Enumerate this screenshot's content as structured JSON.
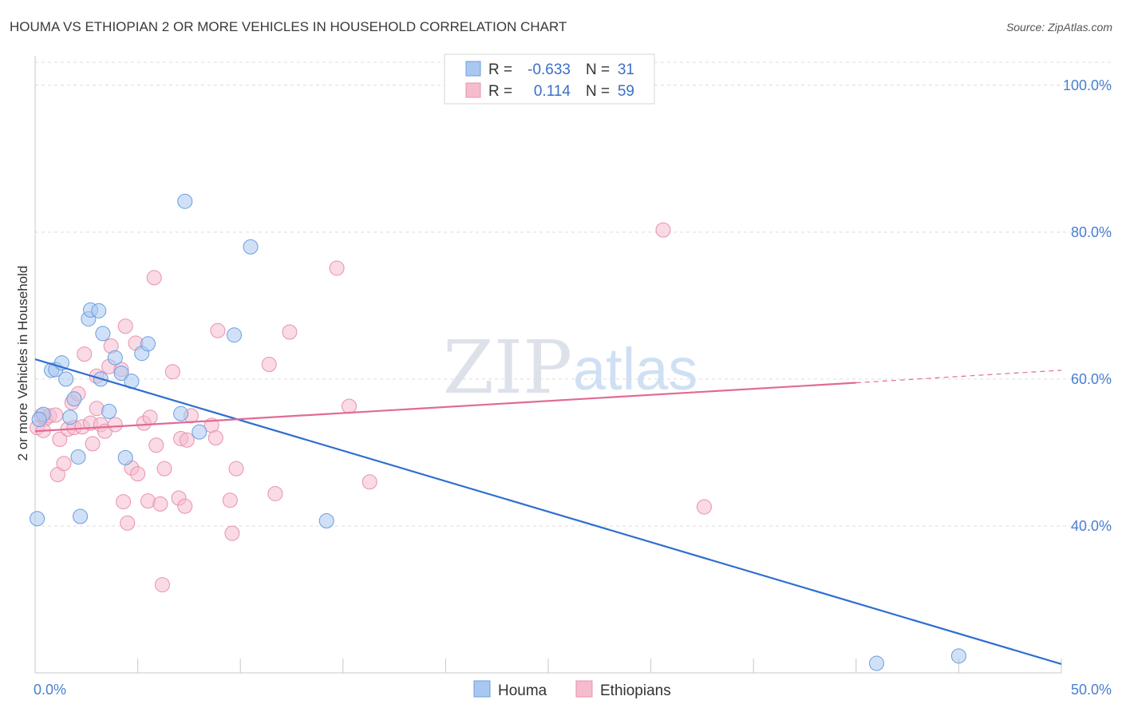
{
  "header": {
    "title": "HOUMA VS ETHIOPIAN 2 OR MORE VEHICLES IN HOUSEHOLD CORRELATION CHART",
    "source": "Source: ZipAtlas.com"
  },
  "watermark": {
    "zip": "ZIP",
    "atlas": "atlas"
  },
  "legend": {
    "rows": [
      {
        "r_label": "R =",
        "r_value": "-0.633",
        "n_label": "N =",
        "n_value": "31"
      },
      {
        "r_label": "R =",
        "r_value": "0.114",
        "n_label": "N =",
        "n_value": "59"
      }
    ]
  },
  "colors": {
    "houma_fill": "#a9c8f0",
    "houma_stroke": "#6a9de0",
    "houma_line": "#2f6fd0",
    "eth_fill": "#f6bccd",
    "eth_stroke": "#e892ad",
    "eth_line": "#e06b95",
    "grid": "#dcdcdc",
    "axis": "#c8c8c8"
  },
  "chart_data": {
    "type": "scatter",
    "title": "HOUMA VS ETHIOPIAN 2 OR MORE VEHICLES IN HOUSEHOLD CORRELATION CHART",
    "xlabel": "",
    "ylabel": "2 or more Vehicles in Household",
    "xlim": [
      0,
      50
    ],
    "ylim": [
      20,
      104
    ],
    "x_tick_labels": [
      {
        "value": 0,
        "label": "0.0%"
      },
      {
        "value": 50,
        "label": "50.0%"
      }
    ],
    "y_tick_labels": [
      {
        "value": 40,
        "label": "40.0%"
      },
      {
        "value": 60,
        "label": "60.0%"
      },
      {
        "value": 80,
        "label": "80.0%"
      },
      {
        "value": 100,
        "label": "100.0%"
      }
    ],
    "legend_position": "top-center",
    "series": [
      {
        "name": "Houma",
        "r": -0.633,
        "n": 31,
        "trend": {
          "x0": 0,
          "y0": 62.7,
          "x1": 50,
          "y1": 21.2
        },
        "points": [
          [
            0.1,
            41.0
          ],
          [
            0.4,
            55.2
          ],
          [
            0.8,
            61.2
          ],
          [
            1.0,
            61.3
          ],
          [
            1.3,
            62.2
          ],
          [
            1.5,
            60.0
          ],
          [
            1.7,
            54.8
          ],
          [
            1.9,
            57.3
          ],
          [
            2.1,
            49.4
          ],
          [
            2.2,
            41.3
          ],
          [
            2.6,
            68.2
          ],
          [
            2.7,
            69.4
          ],
          [
            3.1,
            69.3
          ],
          [
            3.2,
            60.0
          ],
          [
            3.3,
            66.2
          ],
          [
            3.6,
            55.6
          ],
          [
            3.9,
            62.9
          ],
          [
            4.2,
            60.8
          ],
          [
            4.4,
            49.3
          ],
          [
            4.7,
            59.7
          ],
          [
            5.2,
            63.5
          ],
          [
            5.5,
            64.8
          ],
          [
            7.1,
            55.3
          ],
          [
            7.3,
            84.2
          ],
          [
            8.0,
            52.8
          ],
          [
            9.7,
            66.0
          ],
          [
            10.5,
            78.0
          ],
          [
            14.2,
            40.7
          ],
          [
            41.0,
            21.3
          ],
          [
            45.0,
            22.3
          ],
          [
            0.2,
            54.5
          ]
        ]
      },
      {
        "name": "Ethiopians",
        "r": 0.114,
        "n": 59,
        "trend": {
          "x0": 0,
          "y0": 52.9,
          "x1": 40,
          "y1": 59.5,
          "dash_x1": 50,
          "dash_y1": 61.2
        },
        "points": [
          [
            0.1,
            53.4
          ],
          [
            0.3,
            55.0
          ],
          [
            0.5,
            54.6
          ],
          [
            0.7,
            55.0
          ],
          [
            1.0,
            55.1
          ],
          [
            1.1,
            47.0
          ],
          [
            1.2,
            51.8
          ],
          [
            1.4,
            48.5
          ],
          [
            1.6,
            53.2
          ],
          [
            1.8,
            56.8
          ],
          [
            1.9,
            53.4
          ],
          [
            2.1,
            58.0
          ],
          [
            2.3,
            53.5
          ],
          [
            2.4,
            63.4
          ],
          [
            2.7,
            54.0
          ],
          [
            2.8,
            51.2
          ],
          [
            3.0,
            60.4
          ],
          [
            3.0,
            56.0
          ],
          [
            3.2,
            53.8
          ],
          [
            3.4,
            52.9
          ],
          [
            3.6,
            61.7
          ],
          [
            3.7,
            64.5
          ],
          [
            3.9,
            53.8
          ],
          [
            4.2,
            61.3
          ],
          [
            4.3,
            43.3
          ],
          [
            4.4,
            67.2
          ],
          [
            4.5,
            40.4
          ],
          [
            4.7,
            47.9
          ],
          [
            4.9,
            64.9
          ],
          [
            5.0,
            47.1
          ],
          [
            5.3,
            54.0
          ],
          [
            5.5,
            43.4
          ],
          [
            5.6,
            54.8
          ],
          [
            5.8,
            73.8
          ],
          [
            5.9,
            51.0
          ],
          [
            6.1,
            43.0
          ],
          [
            6.2,
            32.0
          ],
          [
            6.3,
            47.8
          ],
          [
            6.7,
            61.0
          ],
          [
            7.0,
            43.8
          ],
          [
            7.1,
            51.9
          ],
          [
            7.3,
            42.7
          ],
          [
            7.4,
            51.7
          ],
          [
            7.6,
            55.0
          ],
          [
            8.6,
            53.7
          ],
          [
            8.8,
            52.0
          ],
          [
            8.9,
            66.6
          ],
          [
            9.5,
            43.5
          ],
          [
            9.6,
            39.0
          ],
          [
            9.8,
            47.8
          ],
          [
            11.4,
            62.0
          ],
          [
            11.7,
            44.4
          ],
          [
            12.4,
            66.4
          ],
          [
            14.7,
            75.1
          ],
          [
            15.3,
            56.3
          ],
          [
            16.3,
            46.0
          ],
          [
            30.6,
            80.3
          ],
          [
            32.6,
            42.6
          ],
          [
            0.4,
            53.0
          ]
        ]
      }
    ]
  },
  "bottom_legend": {
    "items": [
      "Houma",
      "Ethiopians"
    ]
  }
}
